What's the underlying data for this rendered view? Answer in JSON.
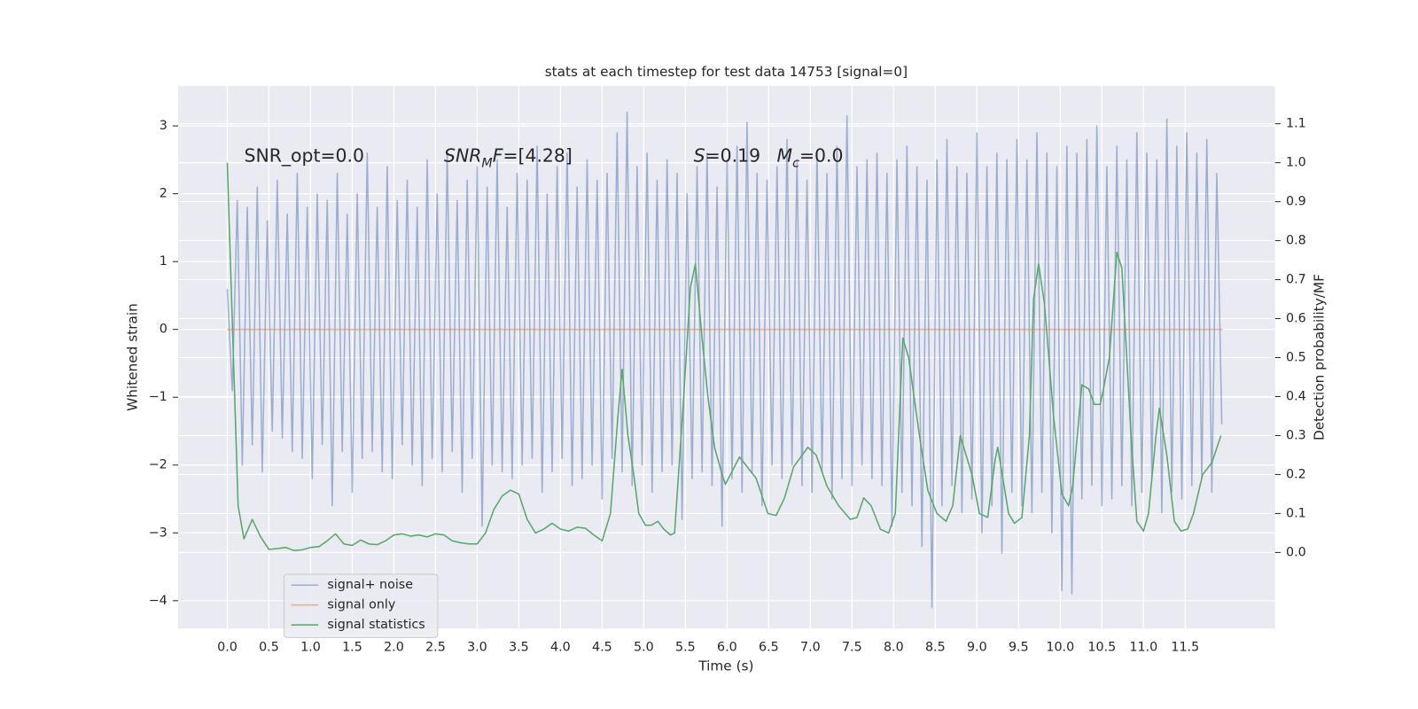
{
  "chart_data": {
    "type": "line",
    "title": "stats at each timestep for test data 14753 [signal=0]",
    "x_label": "Time (s)",
    "y_label": "Whitened strain",
    "y2_label": "Detection probability/MF",
    "xlim": [
      -0.59,
      12.58
    ],
    "ylim": [
      -4.41,
      3.59
    ],
    "y2lim": [
      -0.195,
      1.197
    ],
    "xticks": [
      {
        "value": 0,
        "label": "0.0"
      },
      0.5,
      {
        "value": 1,
        "label": "1.0"
      },
      1.5,
      {
        "value": 2,
        "label": "2.0"
      },
      2.5,
      {
        "value": 3,
        "label": "3.0"
      },
      3.5,
      {
        "value": 4,
        "label": "4.0"
      },
      4.5,
      {
        "value": 5,
        "label": "5.0"
      },
      5.5,
      {
        "value": 6,
        "label": "6.0"
      },
      6.5,
      {
        "value": 7,
        "label": "7.0"
      },
      7.5,
      {
        "value": 8,
        "label": "8.0"
      },
      8.5,
      {
        "value": 9,
        "label": "9.0"
      },
      9.5,
      {
        "value": 10,
        "label": "10.0"
      },
      10.5,
      {
        "value": 11,
        "label": "11.0"
      },
      11.5
    ],
    "yticks": [
      {
        "value": -4,
        "label": "−4"
      },
      {
        "value": -3,
        "label": "−3"
      },
      {
        "value": -2,
        "label": "−2"
      },
      {
        "value": -1,
        "label": "−1"
      },
      0,
      1,
      2,
      3
    ],
    "y2ticks": [
      {
        "value": 0,
        "label": "0.0"
      },
      0.1,
      0.2,
      0.3,
      0.4,
      0.5,
      0.6,
      0.7,
      0.8,
      0.9,
      {
        "value": 1,
        "label": "1.0"
      },
      1.1
    ],
    "grid": true,
    "legend": "lower left",
    "annotations": [
      [
        {
          "text": "SNR_opt=0.0"
        }
      ],
      [
        {
          "text": "SNR",
          "italic": true
        },
        {
          "text": "M",
          "italic": true,
          "sub": true
        },
        {
          "text": "F",
          "italic": true
        },
        {
          "text": "=[4.28]"
        }
      ],
      [
        {
          "text": "S",
          "italic": true
        },
        {
          "text": "=0.19"
        }
      ],
      [
        {
          "text": "M",
          "italic": true
        },
        {
          "text": "c",
          "italic": true,
          "sub": true
        },
        {
          "text": "=0.0"
        }
      ]
    ],
    "series": [
      {
        "name": "signal+ noise",
        "color": "#4c72b0",
        "opacity": 0.5,
        "x": [
          0,
          0.06,
          0.12,
          0.18,
          0.24,
          0.3,
          0.36,
          0.42,
          0.48,
          0.54,
          0.6,
          0.66,
          0.72,
          0.78,
          0.84,
          0.9,
          0.96,
          1.02,
          1.08,
          1.14,
          1.2,
          1.26,
          1.32,
          1.38,
          1.44,
          1.5,
          1.56,
          1.62,
          1.68,
          1.74,
          1.8,
          1.86,
          1.92,
          1.98,
          2.04,
          2.1,
          2.16,
          2.22,
          2.28,
          2.34,
          2.4,
          2.46,
          2.52,
          2.58,
          2.64,
          2.7,
          2.76,
          2.82,
          2.88,
          2.94,
          3.0,
          3.06,
          3.12,
          3.18,
          3.24,
          3.3,
          3.36,
          3.42,
          3.48,
          3.54,
          3.6,
          3.66,
          3.72,
          3.78,
          3.84,
          3.9,
          3.96,
          4.02,
          4.08,
          4.14,
          4.2,
          4.26,
          4.32,
          4.38,
          4.44,
          4.5,
          4.56,
          4.62,
          4.68,
          4.74,
          4.8,
          4.86,
          4.92,
          4.98,
          5.04,
          5.1,
          5.16,
          5.22,
          5.28,
          5.34,
          5.4,
          5.46,
          5.52,
          5.58,
          5.64,
          5.7,
          5.76,
          5.82,
          5.88,
          5.94,
          6.0,
          6.06,
          6.12,
          6.18,
          6.24,
          6.3,
          6.36,
          6.42,
          6.48,
          6.54,
          6.6,
          6.66,
          6.72,
          6.78,
          6.84,
          6.9,
          6.96,
          7.02,
          7.08,
          7.14,
          7.2,
          7.26,
          7.32,
          7.38,
          7.44,
          7.5,
          7.56,
          7.62,
          7.68,
          7.74,
          7.8,
          7.86,
          7.92,
          7.98,
          8.04,
          8.1,
          8.16,
          8.22,
          8.28,
          8.34,
          8.4,
          8.46,
          8.52,
          8.58,
          8.64,
          8.7,
          8.76,
          8.82,
          8.88,
          8.94,
          9.0,
          9.06,
          9.12,
          9.18,
          9.24,
          9.3,
          9.36,
          9.42,
          9.48,
          9.54,
          9.6,
          9.66,
          9.72,
          9.78,
          9.84,
          9.9,
          9.96,
          10.02,
          10.08,
          10.14,
          10.2,
          10.26,
          10.32,
          10.38,
          10.44,
          10.5,
          10.56,
          10.62,
          10.68,
          10.74,
          10.8,
          10.86,
          10.92,
          10.98,
          11.04,
          11.1,
          11.16,
          11.22,
          11.28,
          11.34,
          11.4,
          11.46,
          11.52,
          11.58,
          11.64,
          11.7,
          11.76,
          11.82,
          11.88,
          11.94
        ],
        "values": [
          0.6,
          -0.9,
          1.9,
          -2.0,
          1.8,
          -1.7,
          2.1,
          -2.1,
          1.6,
          -1.5,
          2.2,
          -1.6,
          1.7,
          -1.8,
          2.3,
          -1.9,
          1.8,
          -2.2,
          2.0,
          -1.7,
          1.9,
          -2.6,
          2.3,
          -1.8,
          1.7,
          -2.4,
          2.0,
          -1.9,
          2.6,
          -1.8,
          1.8,
          -2.1,
          2.4,
          -2.2,
          1.9,
          -1.7,
          2.2,
          -2.0,
          1.8,
          -2.3,
          2.5,
          -1.9,
          2.0,
          -2.1,
          2.6,
          -1.8,
          1.9,
          -2.4,
          2.2,
          -1.9,
          2.4,
          -2.9,
          2.1,
          -2.0,
          2.5,
          -2.1,
          1.8,
          -2.2,
          2.3,
          -2.0,
          2.2,
          -1.9,
          2.7,
          -2.4,
          2.0,
          -2.1,
          2.4,
          -1.9,
          2.6,
          -2.3,
          2.1,
          -2.2,
          2.5,
          -2.0,
          2.2,
          -2.5,
          2.3,
          -1.9,
          2.9,
          -2.1,
          3.2,
          -2.3,
          2.4,
          -2.0,
          2.6,
          -2.4,
          2.2,
          -2.1,
          2.5,
          -2.0,
          2.3,
          -2.8,
          2.0,
          -2.2,
          2.4,
          -2.1,
          2.6,
          -2.3,
          2.1,
          -2.9,
          2.5,
          -2.2,
          2.7,
          -2.4,
          3.05,
          -2.1,
          2.3,
          -2.6,
          2.2,
          -2.0,
          2.4,
          -2.2,
          2.8,
          -2.0,
          2.5,
          -2.3,
          2.2,
          -2.4,
          2.6,
          -2.1,
          2.3,
          -2.5,
          2.7,
          -2.2,
          3.15,
          -2.3,
          2.4,
          -2.0,
          2.5,
          -2.2,
          2.6,
          -2.3,
          2.3,
          -2.9,
          2.5,
          -2.4,
          2.7,
          -2.6,
          2.4,
          -3.2,
          2.2,
          -4.1,
          2.5,
          -2.6,
          2.8,
          -2.3,
          2.4,
          -2.7,
          2.3,
          -2.5,
          2.9,
          -3.0,
          2.4,
          -2.6,
          2.6,
          -3.3,
          2.5,
          -2.4,
          2.8,
          -2.6,
          2.5,
          -2.7,
          2.9,
          -2.4,
          2.6,
          -3.0,
          2.4,
          -3.85,
          2.7,
          -3.9,
          2.6,
          -2.5,
          2.8,
          -2.3,
          3.0,
          -2.6,
          2.4,
          -2.5,
          2.7,
          -2.3,
          2.5,
          -2.6,
          2.9,
          -2.4,
          2.6,
          -2.2,
          2.5,
          -2.7,
          3.1,
          -2.4,
          2.7,
          -2.5,
          2.9,
          -2.3,
          2.6,
          -2.2,
          2.8,
          -2.4,
          2.3,
          -1.4
        ]
      },
      {
        "name": "signal only",
        "color": "#dd8452",
        "opacity": 0.6,
        "x": [
          0,
          11.95
        ],
        "values": [
          0,
          0
        ]
      },
      {
        "name": "signal statistics",
        "color": "#55a868",
        "opacity": 1,
        "axis": "y2",
        "x": [
          0,
          0.13,
          0.2,
          0.3,
          0.4,
          0.5,
          0.6,
          0.7,
          0.8,
          0.9,
          1.0,
          1.1,
          1.2,
          1.3,
          1.4,
          1.5,
          1.6,
          1.7,
          1.8,
          1.9,
          2.0,
          2.1,
          2.2,
          2.3,
          2.4,
          2.5,
          2.6,
          2.7,
          2.8,
          2.9,
          3.0,
          3.1,
          3.2,
          3.3,
          3.4,
          3.5,
          3.6,
          3.7,
          3.8,
          3.9,
          4.0,
          4.1,
          4.2,
          4.3,
          4.4,
          4.5,
          4.6,
          4.69,
          4.74,
          4.81,
          4.88,
          4.94,
          5.02,
          5.09,
          5.17,
          5.24,
          5.32,
          5.37,
          5.48,
          5.56,
          5.62,
          5.7,
          5.77,
          5.85,
          5.94,
          5.98,
          6.15,
          6.35,
          6.49,
          6.59,
          6.69,
          6.8,
          6.97,
          7.07,
          7.2,
          7.34,
          7.48,
          7.56,
          7.64,
          7.73,
          7.84,
          7.94,
          8.02,
          8.11,
          8.18,
          8.31,
          8.41,
          8.52,
          8.63,
          8.71,
          8.8,
          8.94,
          9.03,
          9.13,
          9.22,
          9.25,
          9.38,
          9.45,
          9.54,
          9.63,
          9.68,
          9.74,
          9.81,
          9.92,
          10.02,
          10.1,
          10.15,
          10.26,
          10.34,
          10.41,
          10.48,
          10.52,
          10.59,
          10.68,
          10.74,
          10.85,
          10.92,
          11.0,
          11.06,
          11.15,
          11.19,
          11.28,
          11.37,
          11.45,
          11.53,
          11.6,
          11.71,
          11.82,
          11.93
        ],
        "values": [
          1.0,
          0.12,
          0.035,
          0.085,
          0.04,
          0.008,
          0.01,
          0.013,
          0.005,
          0.007,
          0.013,
          0.015,
          0.03,
          0.048,
          0.022,
          0.018,
          0.032,
          0.022,
          0.02,
          0.03,
          0.045,
          0.048,
          0.042,
          0.045,
          0.04,
          0.048,
          0.045,
          0.03,
          0.025,
          0.022,
          0.022,
          0.05,
          0.11,
          0.145,
          0.16,
          0.15,
          0.085,
          0.05,
          0.06,
          0.075,
          0.06,
          0.055,
          0.065,
          0.062,
          0.045,
          0.03,
          0.1,
          0.35,
          0.47,
          0.3,
          0.2,
          0.1,
          0.07,
          0.07,
          0.08,
          0.06,
          0.045,
          0.05,
          0.4,
          0.68,
          0.74,
          0.55,
          0.4,
          0.27,
          0.2,
          0.175,
          0.245,
          0.19,
          0.1,
          0.095,
          0.14,
          0.22,
          0.27,
          0.25,
          0.17,
          0.12,
          0.085,
          0.09,
          0.14,
          0.12,
          0.06,
          0.05,
          0.1,
          0.55,
          0.5,
          0.3,
          0.16,
          0.1,
          0.08,
          0.12,
          0.3,
          0.2,
          0.1,
          0.09,
          0.24,
          0.27,
          0.1,
          0.075,
          0.09,
          0.3,
          0.65,
          0.74,
          0.64,
          0.35,
          0.15,
          0.12,
          0.17,
          0.43,
          0.42,
          0.38,
          0.38,
          0.42,
          0.5,
          0.77,
          0.73,
          0.3,
          0.08,
          0.055,
          0.1,
          0.3,
          0.37,
          0.25,
          0.08,
          0.055,
          0.06,
          0.1,
          0.2,
          0.23,
          0.3
        ]
      }
    ]
  }
}
